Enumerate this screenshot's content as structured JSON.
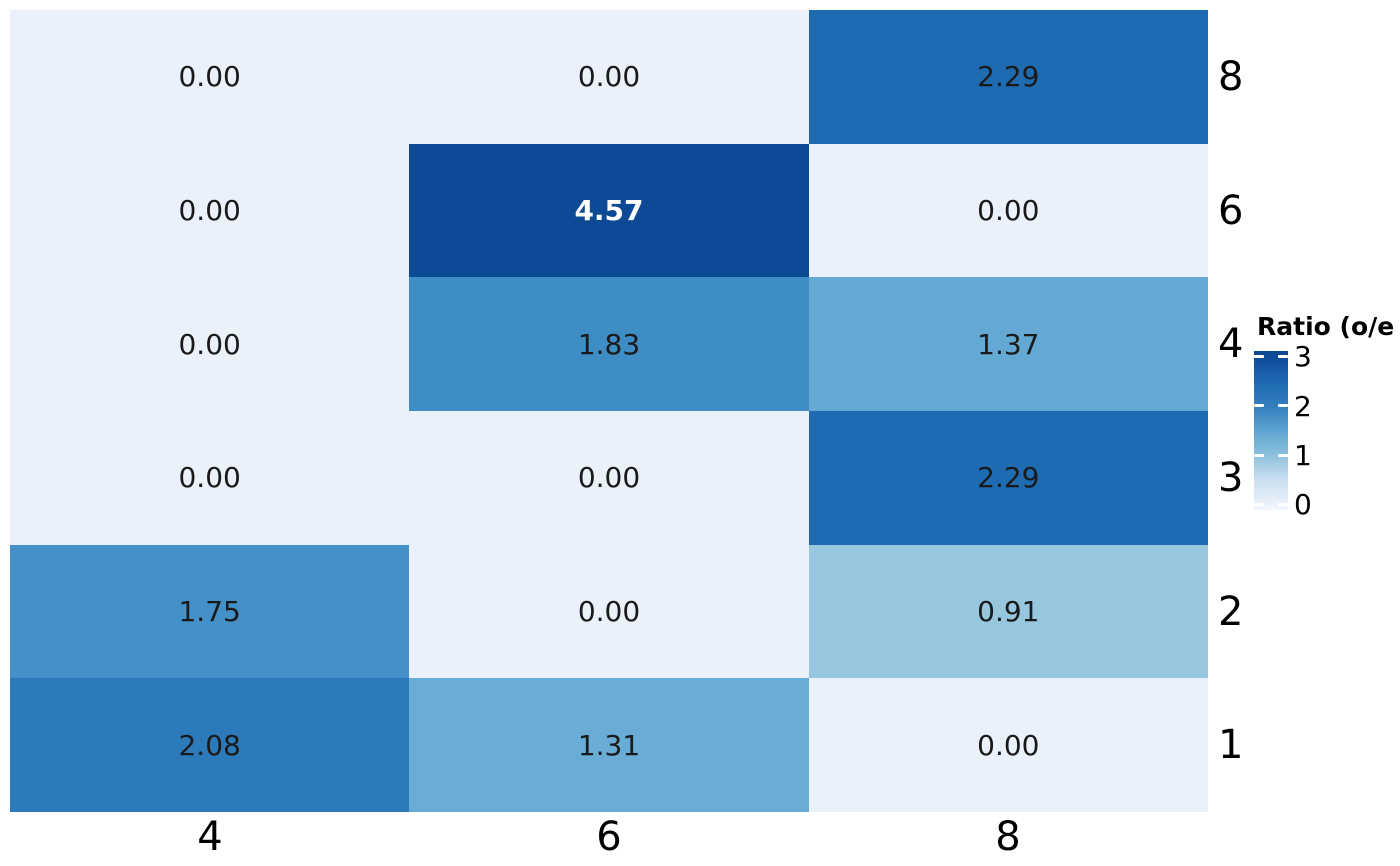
{
  "figure": {
    "background": "#ffffff"
  },
  "chart_data": {
    "type": "heatmap",
    "title": "",
    "x_categories": [
      "4",
      "6",
      "8"
    ],
    "y_categories_top_to_bottom": [
      "8",
      "6",
      "4",
      "3",
      "2",
      "1"
    ],
    "values": [
      [
        0.0,
        0.0,
        2.29
      ],
      [
        0.0,
        4.57,
        0.0
      ],
      [
        0.0,
        1.83,
        1.37
      ],
      [
        0.0,
        0.0,
        2.29
      ],
      [
        1.75,
        0.0,
        0.91
      ],
      [
        2.08,
        1.31,
        0.0
      ]
    ],
    "cells": [
      {
        "label": "0.00",
        "bg": "#eaf1fb",
        "fg": "#1a1a1a",
        "bold": false
      },
      {
        "label": "0.00",
        "bg": "#eaf1fb",
        "fg": "#1a1a1a",
        "bold": false
      },
      {
        "label": "2.29",
        "bg": "#1e6bb1",
        "fg": "#1a1a1a",
        "bold": false
      },
      {
        "label": "0.00",
        "bg": "#eaf1fb",
        "fg": "#1a1a1a",
        "bold": false
      },
      {
        "label": "4.57",
        "bg": "#0d4a96",
        "fg": "#ffffff",
        "bold": true
      },
      {
        "label": "0.00",
        "bg": "#eaf1fb",
        "fg": "#1a1a1a",
        "bold": false
      },
      {
        "label": "0.00",
        "bg": "#eaf1fb",
        "fg": "#1a1a1a",
        "bold": false
      },
      {
        "label": "1.83",
        "bg": "#3e8dc4",
        "fg": "#1a1a1a",
        "bold": false
      },
      {
        "label": "1.37",
        "bg": "#64a9d3",
        "fg": "#1a1a1a",
        "bold": false
      },
      {
        "label": "0.00",
        "bg": "#eaf1fb",
        "fg": "#1a1a1a",
        "bold": false
      },
      {
        "label": "0.00",
        "bg": "#eaf1fb",
        "fg": "#1a1a1a",
        "bold": false
      },
      {
        "label": "2.29",
        "bg": "#1e6bb1",
        "fg": "#1a1a1a",
        "bold": false
      },
      {
        "label": "1.75",
        "bg": "#4391c8",
        "fg": "#1a1a1a",
        "bold": false
      },
      {
        "label": "0.00",
        "bg": "#eaf1fb",
        "fg": "#1a1a1a",
        "bold": false
      },
      {
        "label": "0.91",
        "bg": "#97c6df",
        "fg": "#1a1a1a",
        "bold": false
      },
      {
        "label": "2.08",
        "bg": "#2d7abb",
        "fg": "#1a1a1a",
        "bold": false
      },
      {
        "label": "1.31",
        "bg": "#69acd6",
        "fg": "#1a1a1a",
        "bold": false
      },
      {
        "label": "0.00",
        "bg": "#eaf1fb",
        "fg": "#1a1a1a",
        "bold": false
      }
    ],
    "legend": {
      "title": "Ratio (o/e",
      "ticks_top_to_bottom": [
        "3",
        "2",
        "1",
        "0"
      ],
      "range": [
        0,
        3
      ],
      "colormap": "Blues",
      "position": "right",
      "color_min": "#ecf2fb",
      "color_max": "#0d4a96"
    },
    "layout": {
      "grid": "off",
      "x_axis_side": "bottom",
      "y_axis_side": "right"
    }
  }
}
